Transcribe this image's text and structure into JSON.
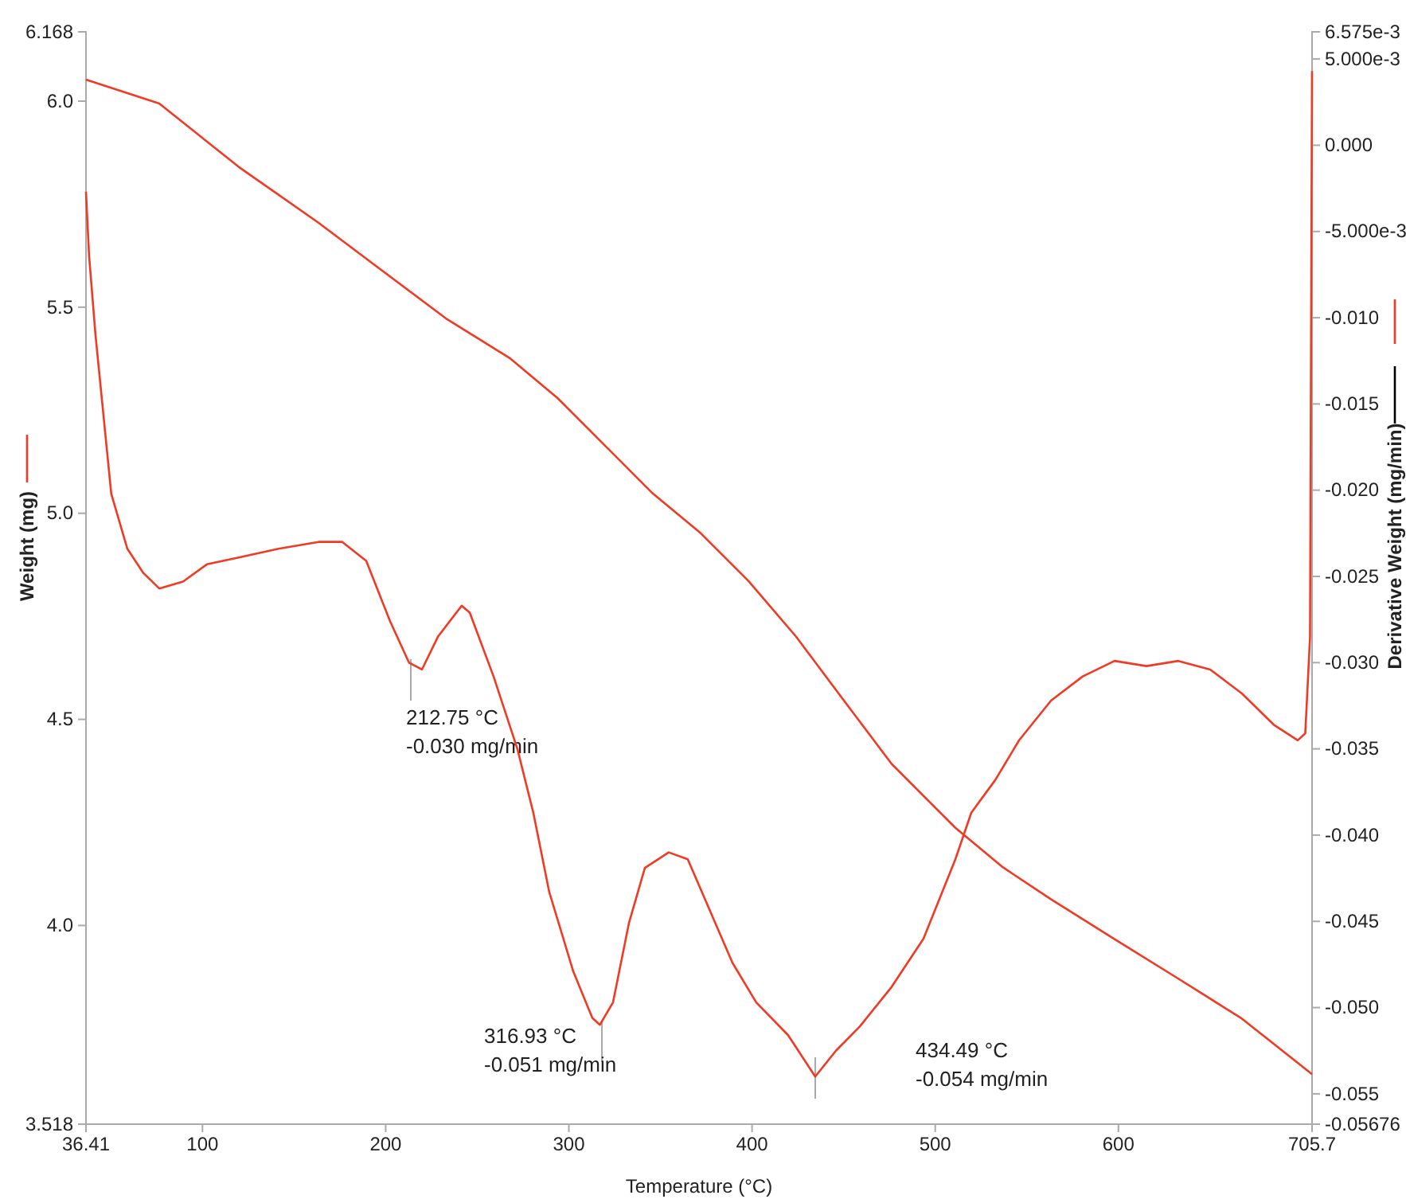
{
  "chart_data": {
    "type": "line",
    "xlabel": "Temperature (°C)",
    "ylabel": "Weight (mg)",
    "y2label": "Derivative Weight (mg/min)",
    "xlim": [
      36.41,
      705.7
    ],
    "xticks": [
      36.41,
      100,
      200,
      300,
      400,
      500,
      600,
      705.7
    ],
    "ylim": [
      3.518,
      6.168
    ],
    "yticks": [
      3.518,
      {
        "value": 4,
        "label": "4.0"
      },
      4.5,
      {
        "value": 5,
        "label": "5.0"
      },
      5.5,
      {
        "value": 6,
        "label": "6.0"
      },
      6.168
    ],
    "y2lim": [
      -0.05676,
      0.006575
    ],
    "y2ticks": [
      -0.05676,
      -0.055,
      {
        "value": -0.05,
        "label": "-0.050"
      },
      -0.045,
      {
        "value": -0.04,
        "label": "-0.040"
      },
      -0.035,
      {
        "value": -0.03,
        "label": "-0.030"
      },
      -0.025,
      {
        "value": -0.02,
        "label": "-0.020"
      },
      -0.015,
      {
        "value": -0.01,
        "label": "-0.010"
      },
      {
        "value": -0.005,
        "label": "-5.000e-3"
      },
      {
        "value": 0,
        "label": "0.000"
      },
      {
        "value": 0.005,
        "label": "5.000e-3"
      },
      {
        "value": 0.006575,
        "label": "6.575e-3"
      }
    ],
    "grid": false,
    "marker": "none",
    "line_style": "solid",
    "series": [
      {
        "color": "#f03a24",
        "x": [
          36.41,
          76.4,
          119.9,
          163.3,
          198,
          232.8,
          267.6,
          293.7,
          319.8,
          345.8,
          371.9,
          398,
          424,
          450.1,
          476.2,
          511,
          537,
          563.1,
          597.9,
          632.7,
          667.4,
          705.7
        ],
        "values": [
          6.052,
          5.994,
          5.84,
          5.705,
          5.589,
          5.473,
          5.377,
          5.28,
          5.164,
          5.048,
          4.952,
          4.836,
          4.701,
          4.546,
          4.392,
          4.237,
          4.141,
          4.064,
          3.967,
          3.871,
          3.774,
          3.639
        ]
      },
      {
        "color": "#f03a24",
        "axis": "y2",
        "x": [
          36.41,
          38.1,
          41.6,
          45.9,
          50.2,
          59.0,
          67.7,
          76.4,
          89.4,
          102.4,
          119.8,
          141.5,
          163.3,
          176.3,
          189.4,
          202.4,
          212.75,
          219.8,
          228.5,
          241.5,
          245.9,
          258.9,
          271.9,
          280.6,
          289.3,
          302.4,
          312.8,
          316.93,
          324.1,
          332.8,
          341.5,
          354.5,
          364.9,
          376.3,
          389.3,
          402.3,
          419.7,
          434.49,
          445.8,
          458.8,
          476.2,
          493.6,
          511.0,
          519.7,
          532.8,
          545.8,
          563.2,
          580.5,
          597.9,
          615.3,
          632.7,
          650.1,
          667.5,
          684.8,
          697.9,
          702.0,
          704.6,
          705.5,
          705.7
        ],
        "values": [
          -0.0027,
          -0.0064,
          -0.011,
          -0.0156,
          -0.0202,
          -0.0234,
          -0.0248,
          -0.0257,
          -0.0253,
          -0.0243,
          -0.0239,
          -0.0234,
          -0.023,
          -0.023,
          -0.0241,
          -0.0276,
          -0.03,
          -0.0304,
          -0.0285,
          -0.0267,
          -0.0271,
          -0.0308,
          -0.035,
          -0.0387,
          -0.0433,
          -0.0479,
          -0.0506,
          -0.051,
          -0.0497,
          -0.0451,
          -0.0419,
          -0.041,
          -0.0414,
          -0.0442,
          -0.0474,
          -0.0497,
          -0.0516,
          -0.054,
          -0.0525,
          -0.0511,
          -0.0488,
          -0.046,
          -0.0414,
          -0.0387,
          -0.0368,
          -0.0345,
          -0.0322,
          -0.0308,
          -0.0299,
          -0.0302,
          -0.0299,
          -0.0304,
          -0.0318,
          -0.0336,
          -0.0345,
          -0.0341,
          -0.0285,
          -0.0008,
          0.0043
        ]
      }
    ],
    "annotations": [
      "212.75 °C\n-0.030 mg/min",
      "316.93 °C\n-0.051 mg/min",
      "434.49 °C\n-0.054 mg/min"
    ]
  }
}
